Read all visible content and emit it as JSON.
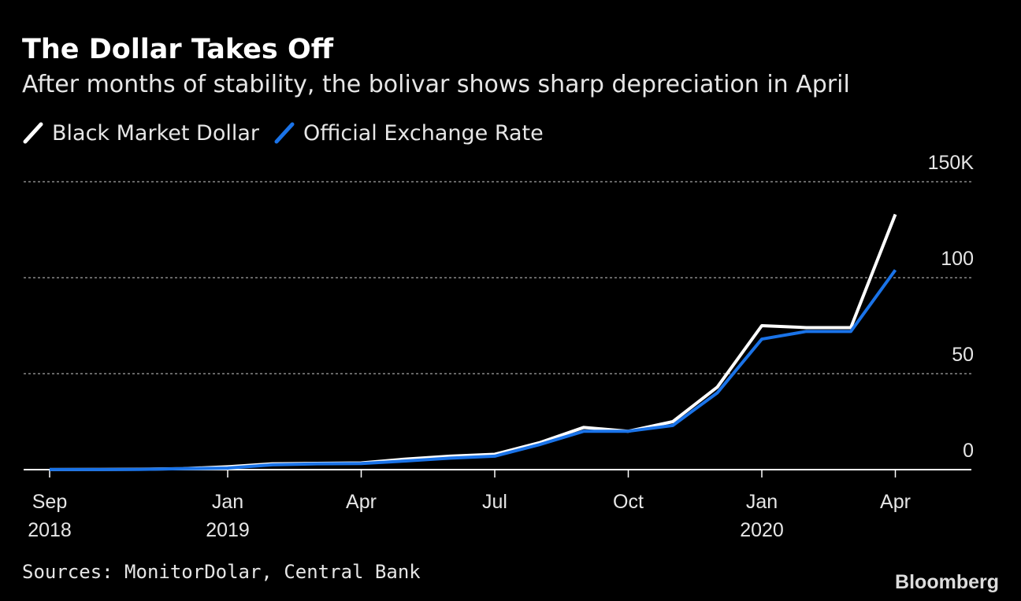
{
  "chart_data": {
    "type": "line",
    "title": "The Dollar Takes Off",
    "subtitle": "After months of stability, the bolivar shows sharp depreciation in April",
    "source": "Sources: MonitorDolar, Central Bank",
    "brand": "Bloomberg",
    "x": [
      "2018-09",
      "2018-10",
      "2018-11",
      "2018-12",
      "2019-01",
      "2019-02",
      "2019-03",
      "2019-04",
      "2019-05",
      "2019-06",
      "2019-07",
      "2019-08",
      "2019-09",
      "2019-10",
      "2019-11",
      "2019-12",
      "2020-01",
      "2020-02",
      "2020-03",
      "2020-04"
    ],
    "series": [
      {
        "name": "Black Market Dollar",
        "color": "#ffffff",
        "values": [
          0.06,
          0.1,
          0.2,
          0.5,
          1.5,
          3,
          3.3,
          3.5,
          5.5,
          7,
          8,
          14,
          22,
          20,
          25,
          43,
          75,
          74,
          74,
          133
        ]
      },
      {
        "name": "Official Exchange Rate",
        "color": "#1a73e8",
        "values": [
          0.06,
          0.06,
          0.1,
          0.5,
          0.8,
          2.5,
          3,
          3.2,
          4.5,
          6,
          7,
          13,
          20,
          20,
          23,
          40,
          68,
          72,
          72,
          104
        ]
      }
    ],
    "xlim": [
      "2018-08",
      "2020-05"
    ],
    "xticks": [
      {
        "value": "2018-09",
        "label": "Sep",
        "year": "2018"
      },
      {
        "value": "2019-01",
        "label": "Jan",
        "year": "2019"
      },
      {
        "value": "2019-04",
        "label": "Apr"
      },
      {
        "value": "2019-07",
        "label": "Jul"
      },
      {
        "value": "2019-10",
        "label": "Oct"
      },
      {
        "value": "2020-01",
        "label": "Jan",
        "year": "2020"
      },
      {
        "value": "2020-04",
        "label": "Apr"
      }
    ],
    "ylim": [
      0,
      150
    ],
    "yticks": [
      0,
      50,
      100,
      {
        "value": 150,
        "label": "150K"
      }
    ],
    "grid": true
  }
}
